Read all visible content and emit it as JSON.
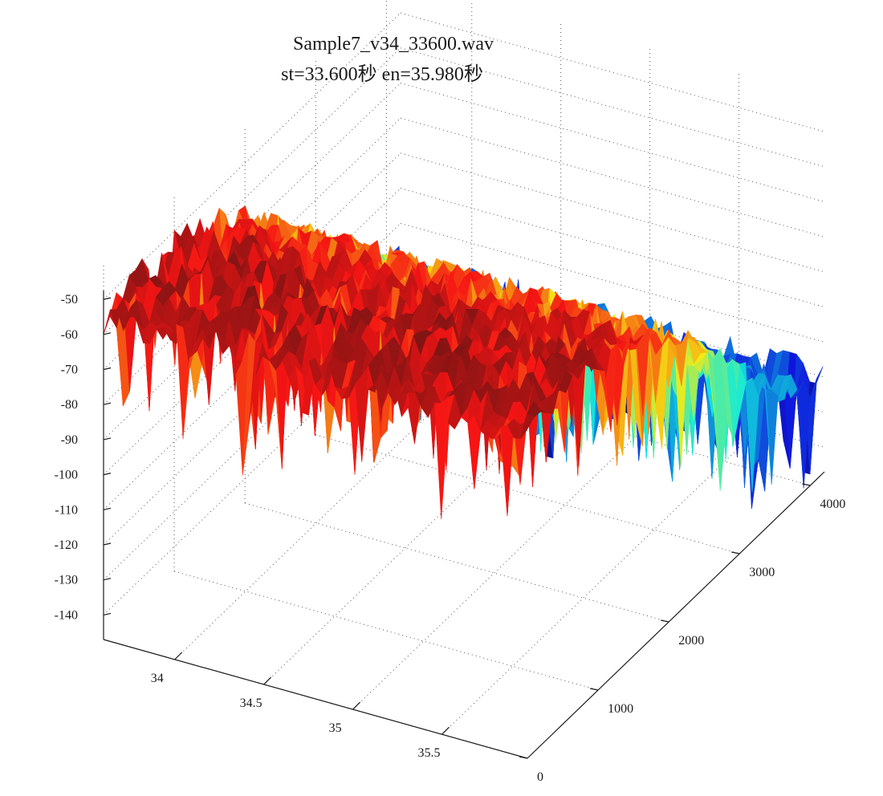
{
  "chart_data": {
    "type": "surface",
    "title": "Sample7_v34_33600.wav",
    "subtitle": "st=33.600秒 en=35.980秒",
    "x_axis": {
      "label": "",
      "ticks": [
        "34",
        "34.5",
        "35",
        "35.5"
      ],
      "range": [
        33.6,
        35.98
      ]
    },
    "y_axis": {
      "label": "",
      "ticks": [
        "0",
        "1000",
        "2000",
        "3000",
        "4000"
      ],
      "range": [
        0,
        4200
      ]
    },
    "z_axis": {
      "label": "",
      "ticks": [
        "-50",
        "-60",
        "-70",
        "-80",
        "-90",
        "-100",
        "-110",
        "-120",
        "-130",
        "-140"
      ],
      "range": [
        -147,
        -40
      ]
    },
    "grid": true,
    "colormap": "jet",
    "series": [
      {
        "y": [
          0,
          500,
          1000,
          1500,
          2000,
          2500,
          3000,
          3500,
          4000
        ],
        "z_mean_by_y": [
          -55,
          -52,
          -54,
          -58,
          -66,
          -80,
          -95,
          -110,
          -120
        ]
      }
    ]
  }
}
